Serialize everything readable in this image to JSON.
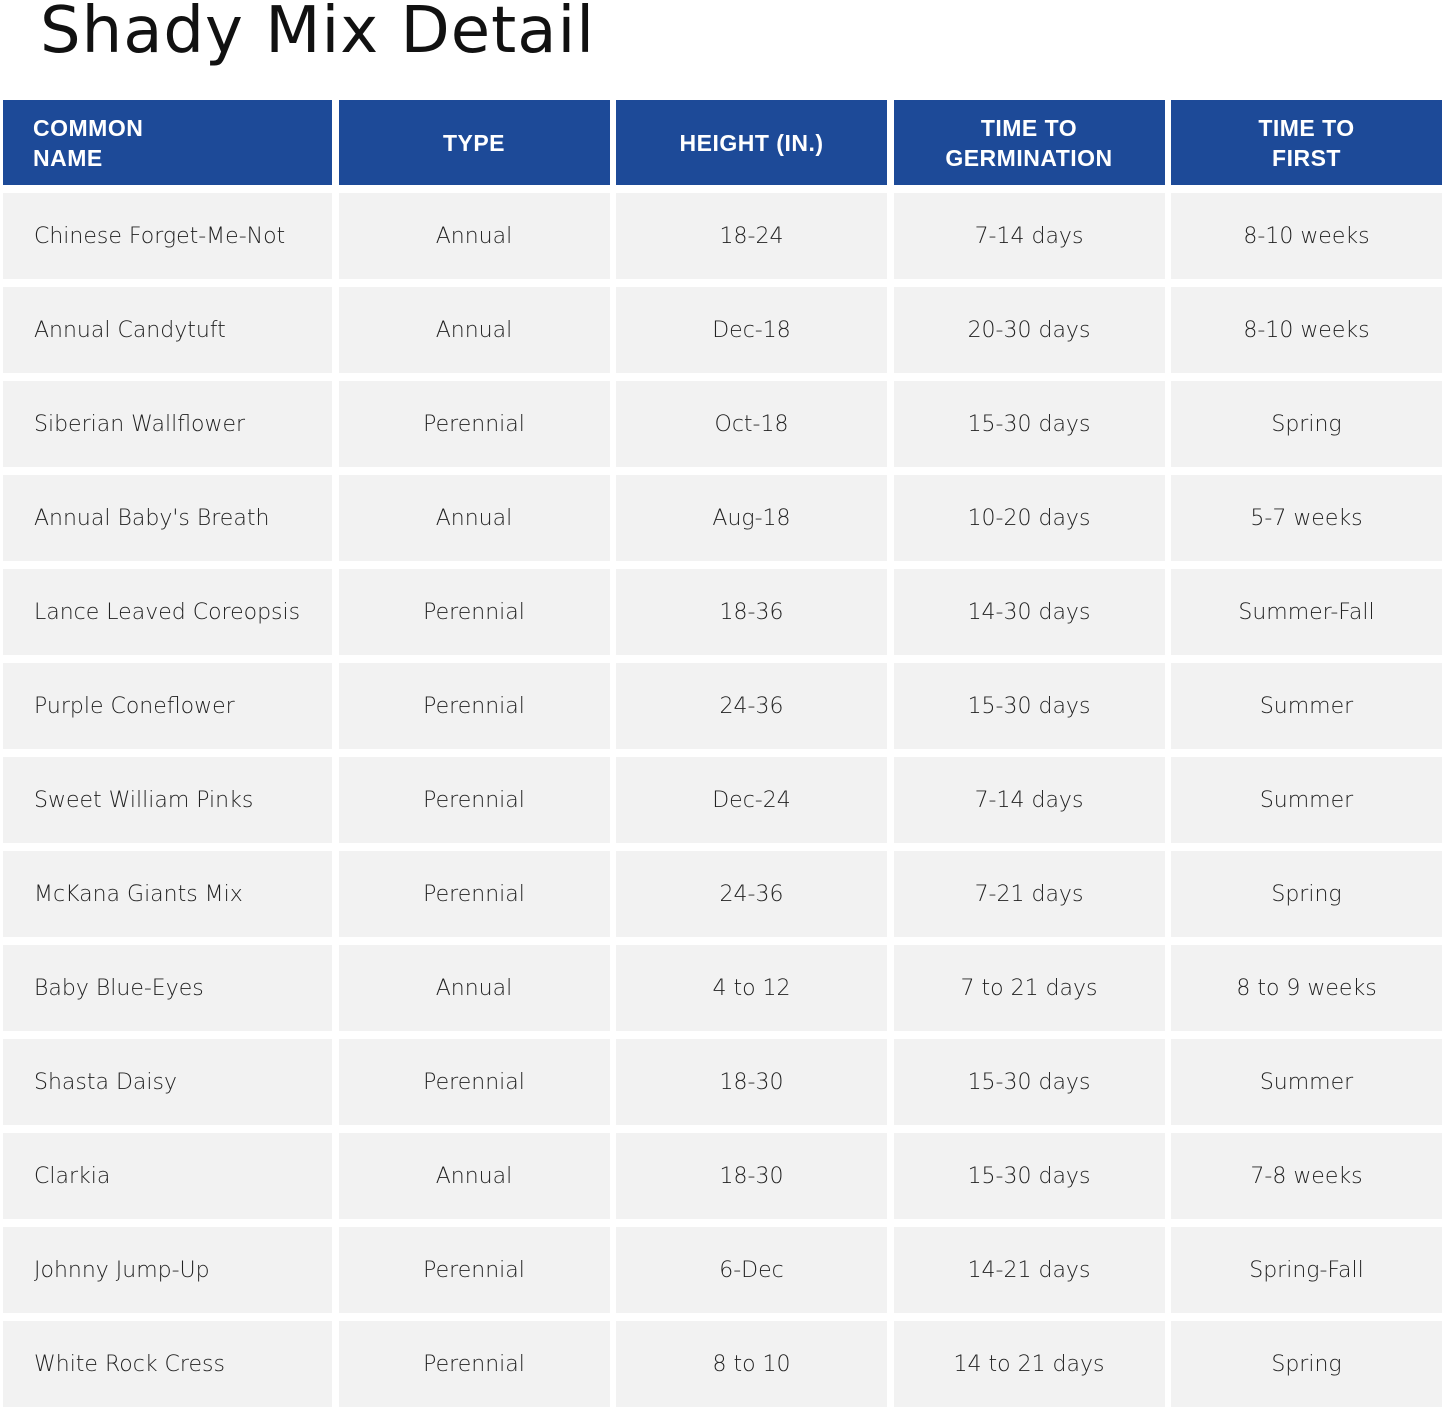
{
  "title": "Shady Mix Detail",
  "header_color": "#1d4a98",
  "columns": [
    "COMMON\nNAME",
    "TYPE",
    "HEIGHT (IN.)",
    "TIME TO\nGERMINATION",
    "TIME TO\nFIRST"
  ],
  "rows": [
    [
      "Chinese Forget-Me-Not",
      "Annual",
      "18-24",
      "7-14 days",
      "8-10 weeks"
    ],
    [
      "Annual Candytuft",
      "Annual",
      "Dec-18",
      "20-30 days",
      "8-10 weeks"
    ],
    [
      "Siberian Wallflower",
      "Perennial",
      "Oct-18",
      "15-30 days",
      "Spring"
    ],
    [
      "Annual Baby's Breath",
      "Annual",
      "Aug-18",
      "10-20 days",
      "5-7 weeks"
    ],
    [
      "Lance Leaved Coreopsis",
      "Perennial",
      "18-36",
      "14-30 days",
      "Summer-Fall"
    ],
    [
      "Purple Coneflower",
      "Perennial",
      "24-36",
      "15-30 days",
      "Summer"
    ],
    [
      "Sweet William Pinks",
      "Perennial",
      "Dec-24",
      "7-14 days",
      "Summer"
    ],
    [
      "McKana Giants Mix",
      "Perennial",
      "24-36",
      "7-21 days",
      "Spring"
    ],
    [
      "Baby Blue-Eyes",
      "Annual",
      "4 to 12",
      "7 to 21 days",
      "8 to 9 weeks"
    ],
    [
      "Shasta Daisy",
      "Perennial",
      "18-30",
      "15-30 days",
      "Summer"
    ],
    [
      "Clarkia",
      "Annual",
      "18-30",
      "15-30 days",
      "7-8 weeks"
    ],
    [
      "Johnny Jump-Up",
      "Perennial",
      "6-Dec",
      "14-21 days",
      "Spring-Fall"
    ],
    [
      "White Rock Cress",
      "Perennial",
      "8 to 10",
      "14 to 21 days",
      "Spring"
    ]
  ]
}
